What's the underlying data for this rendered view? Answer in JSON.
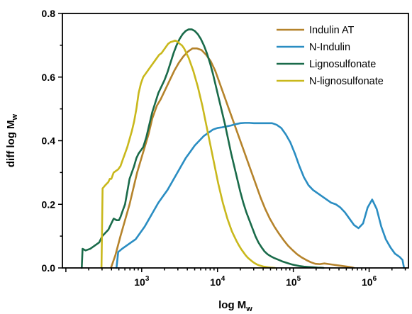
{
  "chart_data": {
    "type": "line",
    "xlabel": "log M",
    "xlabel_sub": "w",
    "ylabel": "diff log M",
    "ylabel_sub": "w",
    "x_scale": "log",
    "xlim": [
      90,
      3300000
    ],
    "ylim": [
      0,
      0.8
    ],
    "x_ticks": [
      {
        "value": 1000,
        "base": "10",
        "exp": "3"
      },
      {
        "value": 10000,
        "base": "10",
        "exp": "4"
      },
      {
        "value": 100000,
        "base": "10",
        "exp": "5"
      },
      {
        "value": 1000000,
        "base": "10",
        "exp": "6"
      }
    ],
    "y_ticks": [
      "0.0",
      "0.2",
      "0.4",
      "0.6",
      "0.8"
    ],
    "grid": false,
    "legend_position": "top-right",
    "series": [
      {
        "name": "Indulin AT",
        "color": "#B5832B",
        "x": [
          393,
          450,
          525,
          603,
          692,
          776,
          871,
          977,
          1096,
          1230,
          1380,
          1585,
          1778,
          2042,
          2344,
          2692,
          3090,
          3548,
          4074,
          4677,
          5370,
          6166,
          7079,
          8128,
          9333,
          10715,
          12303,
          14125,
          16218,
          18621,
          21380,
          24547,
          28184,
          32359,
          37154,
          42658,
          48978,
          56234,
          64565,
          74131,
          85114,
          97724,
          112202,
          128825,
          147911,
          169824,
          194984,
          223872,
          257040,
          295121,
          338844,
          389045,
          446684,
          512861,
          588844,
          630957
        ],
        "y": [
          0.0,
          0.04,
          0.1,
          0.15,
          0.2,
          0.25,
          0.3,
          0.34,
          0.38,
          0.42,
          0.47,
          0.51,
          0.53,
          0.56,
          0.59,
          0.62,
          0.645,
          0.665,
          0.68,
          0.69,
          0.69,
          0.685,
          0.67,
          0.65,
          0.62,
          0.58,
          0.54,
          0.5,
          0.46,
          0.42,
          0.38,
          0.34,
          0.3,
          0.26,
          0.22,
          0.185,
          0.155,
          0.13,
          0.108,
          0.088,
          0.07,
          0.056,
          0.043,
          0.033,
          0.025,
          0.018,
          0.013,
          0.012,
          0.014,
          0.012,
          0.01,
          0.008,
          0.006,
          0.004,
          0.002,
          0.0
        ]
      },
      {
        "name": "N-Indulin",
        "color": "#2A8DC2",
        "x": [
          465,
          490,
          550,
          631,
          724,
          832,
          955,
          1096,
          1259,
          1445,
          1660,
          1905,
          2188,
          2512,
          2884,
          3311,
          3802,
          4365,
          5012,
          5754,
          6607,
          7586,
          8710,
          10000,
          11482,
          13183,
          15136,
          17378,
          19953,
          22909,
          26303,
          30200,
          34674,
          39811,
          45709,
          52481,
          60256,
          69183,
          79433,
          91201,
          104713,
          120226,
          138038,
          158489,
          181970,
          208930,
          239883,
          275423,
          316228,
          363078,
          416869,
          478630,
          549541,
          630957,
          724436,
          831764,
          954993,
          1096478,
          1258925,
          1445440,
          1659587,
          1905461,
          2187762,
          2511886,
          2754229,
          2884032
        ],
        "y": [
          0.0,
          0.05,
          0.06,
          0.07,
          0.08,
          0.09,
          0.11,
          0.13,
          0.155,
          0.18,
          0.205,
          0.225,
          0.245,
          0.27,
          0.295,
          0.32,
          0.345,
          0.365,
          0.385,
          0.4,
          0.415,
          0.425,
          0.435,
          0.44,
          0.442,
          0.445,
          0.448,
          0.452,
          0.455,
          0.456,
          0.456,
          0.455,
          0.455,
          0.455,
          0.455,
          0.455,
          0.45,
          0.44,
          0.42,
          0.395,
          0.36,
          0.32,
          0.285,
          0.26,
          0.245,
          0.235,
          0.225,
          0.215,
          0.205,
          0.2,
          0.19,
          0.175,
          0.155,
          0.135,
          0.125,
          0.14,
          0.19,
          0.215,
          0.185,
          0.13,
          0.09,
          0.065,
          0.045,
          0.035,
          0.025,
          0.0
        ]
      },
      {
        "name": "Lignosulfonate",
        "color": "#1A6B4A",
        "x": [
          162,
          166,
          182,
          209,
          240,
          275,
          302,
          331,
          363,
          398,
          427,
          468,
          501,
          525,
          562,
          603,
          646,
          692,
          741,
          794,
          851,
          912,
          977,
          1047,
          1148,
          1259,
          1380,
          1514,
          1660,
          1820,
          1995,
          2188,
          2399,
          2630,
          2884,
          3162,
          3467,
          3802,
          4169,
          4571,
          5012,
          5495,
          6026,
          6607,
          7244,
          7943,
          8710,
          9550,
          10471,
          11482,
          12589,
          13804,
          15136,
          16596,
          18197,
          19953,
          21878,
          23988,
          26303,
          28840,
          31623,
          34674,
          38019,
          41687,
          45709,
          50119,
          54954,
          60256,
          66069,
          72444,
          79433,
          87096,
          95499,
          104713,
          120226,
          138038,
          158489,
          181970,
          208930,
          239883,
          251189
        ],
        "y": [
          0.0,
          0.06,
          0.055,
          0.06,
          0.07,
          0.08,
          0.1,
          0.11,
          0.12,
          0.14,
          0.155,
          0.15,
          0.15,
          0.16,
          0.18,
          0.2,
          0.24,
          0.28,
          0.3,
          0.32,
          0.345,
          0.36,
          0.37,
          0.38,
          0.41,
          0.45,
          0.49,
          0.52,
          0.55,
          0.57,
          0.59,
          0.615,
          0.645,
          0.675,
          0.7,
          0.72,
          0.735,
          0.745,
          0.75,
          0.75,
          0.745,
          0.735,
          0.72,
          0.7,
          0.675,
          0.645,
          0.61,
          0.57,
          0.53,
          0.49,
          0.45,
          0.405,
          0.36,
          0.32,
          0.28,
          0.24,
          0.205,
          0.175,
          0.15,
          0.125,
          0.1,
          0.08,
          0.065,
          0.052,
          0.043,
          0.037,
          0.032,
          0.028,
          0.024,
          0.02,
          0.017,
          0.014,
          0.011,
          0.009,
          0.006,
          0.004,
          0.003,
          0.002,
          0.001,
          0.0005,
          0.0
        ]
      },
      {
        "name": "N-lignosulfonate",
        "color": "#C9B81C",
        "x": [
          295,
          305,
          331,
          363,
          380,
          398,
          427,
          457,
          490,
          525,
          562,
          603,
          646,
          692,
          741,
          794,
          851,
          912,
          977,
          1047,
          1122,
          1202,
          1288,
          1380,
          1479,
          1585,
          1698,
          1820,
          1950,
          2089,
          2239,
          2399,
          2570,
          2754,
          2951,
          3162,
          3388,
          3631,
          3890,
          4169,
          4467,
          4786,
          5129,
          5495,
          5888,
          6310,
          6761,
          7244,
          7762,
          8318,
          8913,
          9550,
          10233,
          10965,
          11749,
          12589,
          13490,
          14454,
          15488,
          16596,
          17783,
          19055,
          20417,
          21878,
          23442,
          25119,
          26915,
          28840,
          30903,
          33113,
          35481,
          38019,
          40738,
          43652,
          46774,
          50119,
          53703,
          57544
        ],
        "y": [
          0.0,
          0.25,
          0.26,
          0.27,
          0.28,
          0.28,
          0.3,
          0.305,
          0.31,
          0.32,
          0.34,
          0.36,
          0.38,
          0.405,
          0.43,
          0.46,
          0.5,
          0.55,
          0.58,
          0.6,
          0.61,
          0.62,
          0.63,
          0.64,
          0.65,
          0.66,
          0.67,
          0.675,
          0.685,
          0.695,
          0.705,
          0.71,
          0.712,
          0.715,
          0.712,
          0.705,
          0.7,
          0.69,
          0.675,
          0.66,
          0.64,
          0.62,
          0.595,
          0.57,
          0.54,
          0.51,
          0.475,
          0.44,
          0.405,
          0.37,
          0.335,
          0.3,
          0.265,
          0.235,
          0.205,
          0.18,
          0.155,
          0.135,
          0.115,
          0.1,
          0.085,
          0.072,
          0.06,
          0.05,
          0.04,
          0.032,
          0.026,
          0.02,
          0.015,
          0.011,
          0.008,
          0.006,
          0.004,
          0.003,
          0.002,
          0.001,
          0.0005,
          0.0
        ]
      }
    ]
  }
}
